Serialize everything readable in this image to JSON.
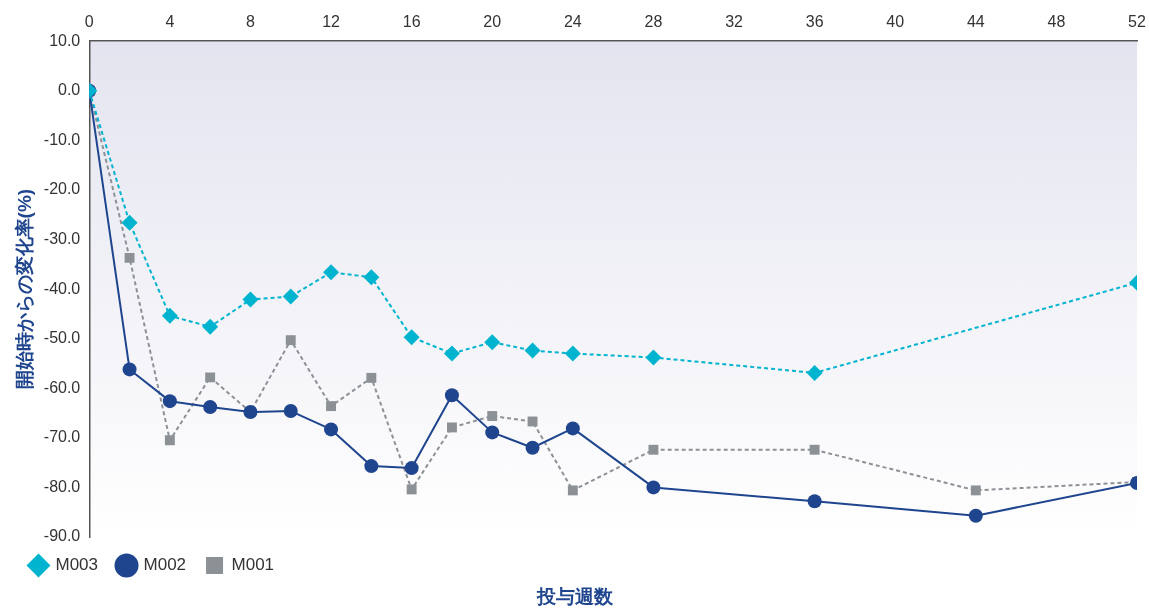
{
  "chart_data": {
    "type": "line",
    "xlabel": "投与週数",
    "ylabel": "開始時からの変化率(%)",
    "x": [
      0,
      2,
      4,
      6,
      8,
      10,
      12,
      14,
      16,
      18,
      20,
      22,
      24,
      28,
      36,
      44,
      52
    ],
    "xlim": [
      0,
      52
    ],
    "xticks": [
      0,
      4,
      8,
      12,
      16,
      20,
      24,
      28,
      32,
      36,
      40,
      44,
      48,
      52
    ],
    "ylim": [
      -90,
      10
    ],
    "yticks": [
      {
        "value": 10,
        "label": "10.0"
      },
      {
        "value": 0,
        "label": "0.0"
      },
      {
        "value": -10,
        "label": "-10.0"
      },
      {
        "value": -20,
        "label": "-20.0"
      },
      {
        "value": -30,
        "label": "-30.0"
      },
      {
        "value": -40,
        "label": "-40.0"
      },
      {
        "value": -50,
        "label": "-50.0"
      },
      {
        "value": -60,
        "label": "-60.0"
      },
      {
        "value": -70,
        "label": "-70.0"
      },
      {
        "value": -80,
        "label": "-80.0"
      },
      {
        "value": -90,
        "label": "-90.0"
      }
    ],
    "grid": false,
    "legend": "bottom left",
    "series": [
      {
        "name": "M001",
        "color": "#8c9196",
        "marker": "square",
        "line_style": "dashed",
        "values": [
          0,
          -33.7,
          -70.5,
          -57.8,
          -64.8,
          -50.3,
          -63.6,
          -57.9,
          -80.4,
          -67.9,
          -65.6,
          -66.7,
          -80.6,
          -72.4,
          -72.4,
          -80.6,
          -78.9
        ]
      },
      {
        "name": "M002",
        "color": "#1f458e",
        "marker": "circle",
        "line_style": "solid",
        "values": [
          0,
          -56.2,
          -62.6,
          -63.8,
          -64.8,
          -64.6,
          -68.3,
          -75.7,
          -76.1,
          -61.4,
          -68.9,
          -72.0,
          -68.1,
          -80.0,
          -82.8,
          -85.7,
          -79.1
        ]
      },
      {
        "name": "M003",
        "color": "#00b4d0",
        "marker": "diamond",
        "line_style": "dashed",
        "x": [
          0,
          2,
          4,
          6,
          8,
          10,
          12,
          14,
          16,
          18,
          20,
          22,
          24,
          28,
          36,
          52
        ],
        "values": [
          0,
          -26.6,
          -45.4,
          -47.6,
          -42.1,
          -41.5,
          -36.6,
          -37.6,
          -49.7,
          -53.0,
          -50.7,
          -52.4,
          -53.0,
          -53.8,
          -56.9,
          -38.7
        ]
      }
    ]
  }
}
